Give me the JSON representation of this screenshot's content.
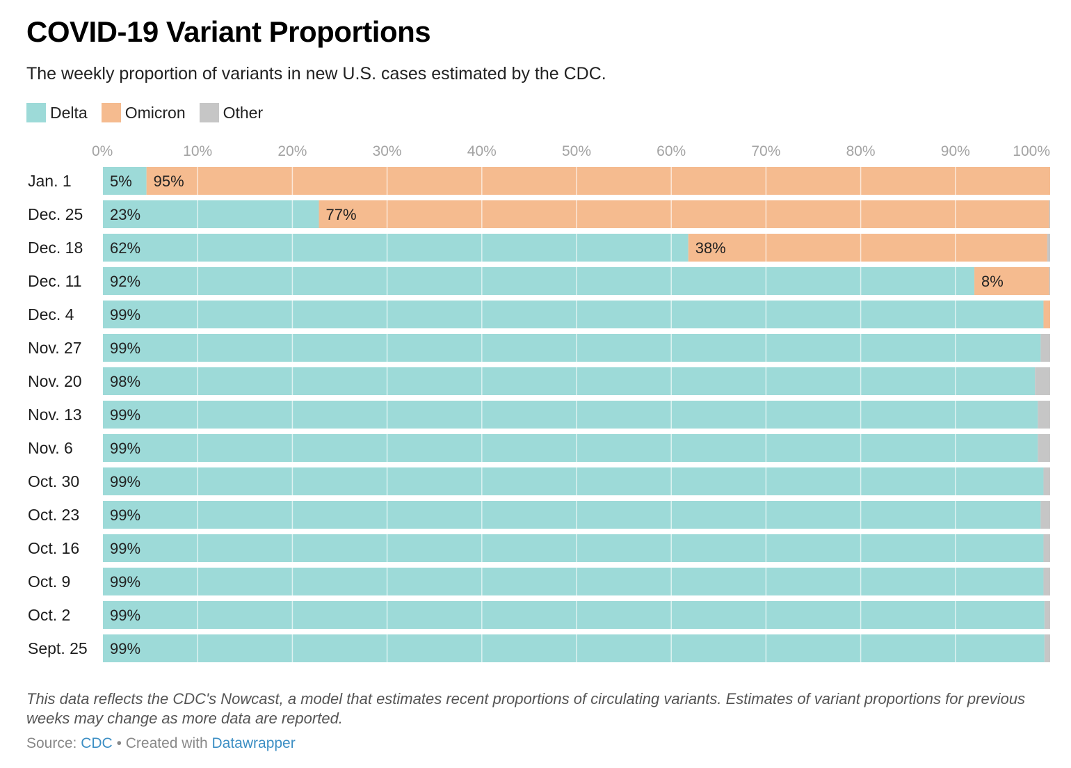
{
  "title": "COVID-19 Variant Proportions",
  "subtitle": "The weekly proportion of variants in new U.S. cases estimated by the CDC.",
  "notes": "This data reflects the CDC's Nowcast, a model that estimates recent proportions of circulating variants. Estimates of variant proportions for previous weeks may change as more data are reported.",
  "footer": {
    "source_label": "Source:",
    "source_link": "CDC",
    "separator": "•",
    "created_label": "Created with",
    "created_link": "Datawrapper"
  },
  "colors": {
    "Delta": "#9ddad8",
    "Omicron": "#f5bb8f",
    "Other": "#c6c6c6"
  },
  "chart_data": {
    "type": "bar",
    "orientation": "horizontal",
    "stacked": true,
    "xlim": [
      0,
      100
    ],
    "x_ticks": [
      "0%",
      "10%",
      "20%",
      "30%",
      "40%",
      "50%",
      "60%",
      "70%",
      "80%",
      "90%",
      "100%"
    ],
    "grid": true,
    "legend_position": "top-left",
    "categories": [
      "Jan. 1",
      "Dec. 25",
      "Dec. 18",
      "Dec. 11",
      "Dec. 4",
      "Nov. 27",
      "Nov. 20",
      "Nov. 13",
      "Nov. 6",
      "Oct. 30",
      "Oct. 23",
      "Oct. 16",
      "Oct. 9",
      "Oct. 2",
      "Sept. 25"
    ],
    "series": [
      {
        "name": "Delta",
        "values": [
          4.6,
          22.8,
          61.8,
          92.0,
          99.3,
          99.0,
          98.4,
          98.7,
          98.7,
          99.3,
          99.0,
          99.3,
          99.3,
          99.4,
          99.4
        ]
      },
      {
        "name": "Omicron",
        "values": [
          95.4,
          77.1,
          37.9,
          7.9,
          0.7,
          0.0,
          0.0,
          0.0,
          0.0,
          0.0,
          0.0,
          0.0,
          0.0,
          0.0,
          0.0
        ]
      },
      {
        "name": "Other",
        "values": [
          0.0,
          0.1,
          0.3,
          0.1,
          0.0,
          1.0,
          1.6,
          1.3,
          1.3,
          0.7,
          1.0,
          0.7,
          0.7,
          0.6,
          0.6
        ]
      }
    ],
    "data_labels": {
      "Delta": [
        "5%",
        "23%",
        "62%",
        "92%",
        "99%",
        "99%",
        "98%",
        "99%",
        "99%",
        "99%",
        "99%",
        "99%",
        "99%",
        "99%",
        "99%"
      ],
      "Omicron": [
        "95%",
        "77%",
        "38%",
        "8%",
        "",
        "",
        "",
        "",
        "",
        "",
        "",
        "",
        "",
        "",
        ""
      ],
      "Other": [
        "",
        "",
        "",
        "",
        "",
        "",
        "",
        "",
        "",
        "",
        "",
        "",
        "",
        "",
        ""
      ]
    }
  }
}
